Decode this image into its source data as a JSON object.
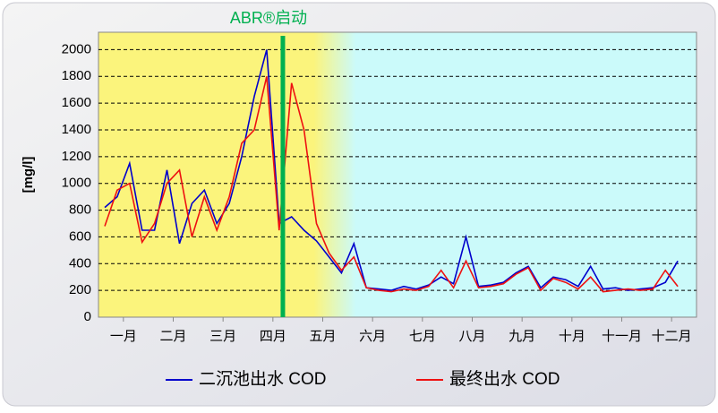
{
  "chart_data": {
    "type": "line",
    "ylabel": "[mg/l]",
    "annotation": {
      "text": "ABR®启动",
      "x": 3.7,
      "color": "#00b050"
    },
    "xlim": [
      0,
      12
    ],
    "xticks": [
      {
        "value": 0.5,
        "label": "一月"
      },
      {
        "value": 1.5,
        "label": "二月"
      },
      {
        "value": 2.5,
        "label": "三月"
      },
      {
        "value": 3.5,
        "label": "四月"
      },
      {
        "value": 4.5,
        "label": "五月"
      },
      {
        "value": 5.5,
        "label": "六月"
      },
      {
        "value": 6.5,
        "label": "七月"
      },
      {
        "value": 7.5,
        "label": "八月"
      },
      {
        "value": 8.5,
        "label": "九月"
      },
      {
        "value": 9.5,
        "label": "十月"
      },
      {
        "value": 10.5,
        "label": "十一月"
      },
      {
        "value": 11.5,
        "label": "十二月"
      }
    ],
    "ylim": [
      0,
      2130
    ],
    "yticks": [
      0,
      200,
      400,
      600,
      800,
      1000,
      1200,
      1400,
      1600,
      1800,
      2000
    ],
    "grid": true,
    "x": [
      0.125,
      0.375,
      0.625,
      0.875,
      1.125,
      1.375,
      1.625,
      1.875,
      2.125,
      2.375,
      2.625,
      2.875,
      3.125,
      3.375,
      3.625,
      3.875,
      4.125,
      4.375,
      4.625,
      4.875,
      5.125,
      5.375,
      5.625,
      5.875,
      6.125,
      6.375,
      6.625,
      6.875,
      7.125,
      7.375,
      7.625,
      7.875,
      8.125,
      8.375,
      8.625,
      8.875,
      9.125,
      9.375,
      9.625,
      9.875,
      10.125,
      10.375,
      10.625,
      10.875,
      11.125,
      11.375,
      11.625
    ],
    "series": [
      {
        "name": "二沉池出水 COD",
        "color": "#0000cc",
        "values": [
          820,
          900,
          1150,
          650,
          650,
          1100,
          550,
          850,
          950,
          700,
          850,
          1200,
          1650,
          2000,
          700,
          750,
          650,
          570,
          450,
          330,
          550,
          220,
          210,
          200,
          230,
          210,
          240,
          300,
          250,
          600,
          230,
          240,
          260,
          330,
          380,
          220,
          300,
          280,
          230,
          380,
          210,
          220,
          200,
          210,
          220,
          260,
          420
        ]
      },
      {
        "name": "最终出水 COD",
        "color": "#ee1111",
        "values": [
          680,
          950,
          1000,
          560,
          700,
          1000,
          1100,
          600,
          900,
          650,
          900,
          1300,
          1400,
          1800,
          650,
          1750,
          1400,
          700,
          480,
          350,
          450,
          220,
          200,
          190,
          210,
          200,
          230,
          350,
          220,
          420,
          220,
          230,
          250,
          320,
          370,
          200,
          290,
          260,
          210,
          300,
          190,
          200,
          210,
          200,
          210,
          350,
          230
        ]
      }
    ]
  }
}
